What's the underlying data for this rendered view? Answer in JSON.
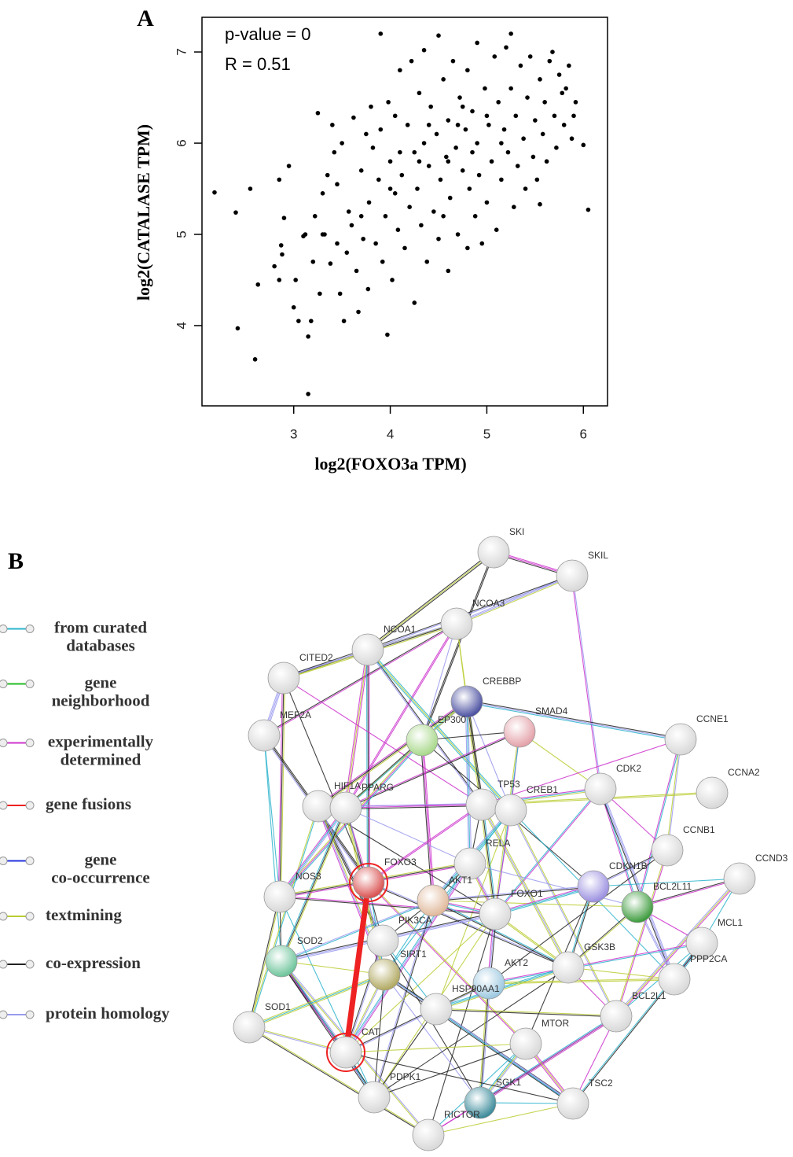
{
  "chart_data": {
    "type": "scatter",
    "panel_label": "A",
    "annotations": [
      "p-value = 0",
      "R = 0.51"
    ],
    "x_label": "log2(FOXO3a TPM)",
    "y_label": "log2(CATALASE TPM)",
    "color": "#000000",
    "xlim": [
      2.05,
      6.25
    ],
    "ylim": [
      3.12,
      7.38
    ],
    "xticks": [
      3,
      4,
      5,
      6
    ],
    "yticks": [
      4,
      5,
      6,
      7
    ],
    "x": [
      2.18,
      2.4,
      2.42,
      2.55,
      2.6,
      2.63,
      2.8,
      2.85,
      2.85,
      2.87,
      2.88,
      2.9,
      2.95,
      3.0,
      3.02,
      3.05,
      3.1,
      3.12,
      3.15,
      3.15,
      3.18,
      3.2,
      3.22,
      3.25,
      3.27,
      3.3,
      3.32,
      3.35,
      3.38,
      3.4,
      3.42,
      3.45,
      3.48,
      3.5,
      3.52,
      3.55,
      3.57,
      3.6,
      3.62,
      3.65,
      3.67,
      3.7,
      3.72,
      3.75,
      3.77,
      3.78,
      3.8,
      3.82,
      3.85,
      3.88,
      3.9,
      3.9,
      3.92,
      3.95,
      3.97,
      3.98,
      4.0,
      4.02,
      4.05,
      4.05,
      4.08,
      4.1,
      4.12,
      4.15,
      4.18,
      4.2,
      4.22,
      4.25,
      4.25,
      4.28,
      4.3,
      4.32,
      4.35,
      4.35,
      4.38,
      4.4,
      4.42,
      4.45,
      4.48,
      4.5,
      4.5,
      4.52,
      4.55,
      4.58,
      4.6,
      4.6,
      4.62,
      4.65,
      4.68,
      4.7,
      4.72,
      4.75,
      4.78,
      4.8,
      4.8,
      4.82,
      4.85,
      4.88,
      4.9,
      4.9,
      4.92,
      4.95,
      4.98,
      5.0,
      5.02,
      5.05,
      5.08,
      5.1,
      5.12,
      5.15,
      5.18,
      5.2,
      5.22,
      5.25,
      5.25,
      5.28,
      5.3,
      5.32,
      5.35,
      5.38,
      5.4,
      5.42,
      5.45,
      5.48,
      5.5,
      5.52,
      5.55,
      5.55,
      5.58,
      5.6,
      5.62,
      5.65,
      5.68,
      5.7,
      5.72,
      5.75,
      5.78,
      5.8,
      5.82,
      5.85,
      5.88,
      5.9,
      5.92,
      6.0,
      6.05,
      3.3,
      3.45,
      3.7,
      4.0,
      4.1,
      4.4,
      4.6,
      4.7,
      4.85,
      5.0,
      5.15,
      4.55,
      4.3,
      4.75
    ],
    "values": [
      5.46,
      5.24,
      3.97,
      5.5,
      3.63,
      4.45,
      4.65,
      4.5,
      5.6,
      4.88,
      4.78,
      5.18,
      5.75,
      4.2,
      4.5,
      4.05,
      4.98,
      5.0,
      3.25,
      3.88,
      4.05,
      4.7,
      5.2,
      6.33,
      4.35,
      5.45,
      5.0,
      5.65,
      4.68,
      6.2,
      5.9,
      5.55,
      4.35,
      6.0,
      4.05,
      4.8,
      5.25,
      5.1,
      6.28,
      4.6,
      4.15,
      5.7,
      4.95,
      6.1,
      4.4,
      5.35,
      6.4,
      5.95,
      4.9,
      5.6,
      7.2,
      6.15,
      4.7,
      5.2,
      3.9,
      6.45,
      5.8,
      4.5,
      6.3,
      5.45,
      5.05,
      6.8,
      5.65,
      4.85,
      6.2,
      5.3,
      6.9,
      4.25,
      5.9,
      5.5,
      6.55,
      5.1,
      7.02,
      6.0,
      4.7,
      5.75,
      6.4,
      5.25,
      6.1,
      7.18,
      4.95,
      5.6,
      6.7,
      5.85,
      4.6,
      6.25,
      5.4,
      6.9,
      5.95,
      5.0,
      6.5,
      5.7,
      6.15,
      4.85,
      6.8,
      5.5,
      6.35,
      5.2,
      7.1,
      6.0,
      5.65,
      4.9,
      6.6,
      5.35,
      6.2,
      5.8,
      6.95,
      5.05,
      6.45,
      5.6,
      6.15,
      7.05,
      5.9,
      7.2,
      6.6,
      5.3,
      6.3,
      5.75,
      6.85,
      6.05,
      5.5,
      6.5,
      6.95,
      5.85,
      6.25,
      5.6,
      5.33,
      6.7,
      6.1,
      6.45,
      5.8,
      6.9,
      7.0,
      6.3,
      5.95,
      6.75,
      6.55,
      6.2,
      6.6,
      6.85,
      6.05,
      6.3,
      6.45,
      5.98,
      5.27,
      5.0,
      4.9,
      5.2,
      5.5,
      5.9,
      6.2,
      5.8,
      6.2,
      5.9,
      6.3,
      6.0,
      5.2,
      5.8,
      6.4
    ]
  },
  "network": {
    "panel_label": "B",
    "legend": [
      {
        "lines": [
          "from curated",
          "databases"
        ],
        "color": "#2ab3cc"
      },
      {
        "lines": [
          "gene",
          "neighborhood"
        ],
        "color": "#22bb22"
      },
      {
        "lines": [
          "experimentally",
          "determined"
        ],
        "color": "#cc33cc"
      },
      {
        "lines": [
          "gene fusions"
        ],
        "color": "#ee2222"
      },
      {
        "lines": [
          "gene",
          "co-occurrence"
        ],
        "color": "#2233dd"
      },
      {
        "lines": [
          "textmining"
        ],
        "color": "#bbcc33"
      },
      {
        "lines": [
          "co-expression"
        ],
        "color": "#222222"
      },
      {
        "lines": [
          "protein homology"
        ],
        "color": "#9999ee"
      }
    ],
    "nodes": [
      "SKI",
      "SKIL",
      "NCOA3",
      "NCOA1",
      "CITED2",
      "CREBBP",
      "SMAD4",
      "EP300",
      "MEF2A",
      "CCNE1",
      "CDK2",
      "CCNA2",
      "HIF1A",
      "PPARG",
      "TP53",
      "CREB1",
      "CCNB1",
      "CCND3",
      "RELA",
      "FOXO3",
      "NOS3",
      "AKT1",
      "CDKN1B",
      "FOXO1",
      "BCL2L11",
      "MCL1",
      "PIK3CA",
      "SOD2",
      "SIRT1",
      "GSK3B",
      "AKT2",
      "HSP90AA1",
      "PPP2CA",
      "BCL2L1",
      "SOD1",
      "MTOR",
      "CAT",
      "PDPK1",
      "SGK1",
      "TSC2",
      "RICTOR"
    ]
  }
}
